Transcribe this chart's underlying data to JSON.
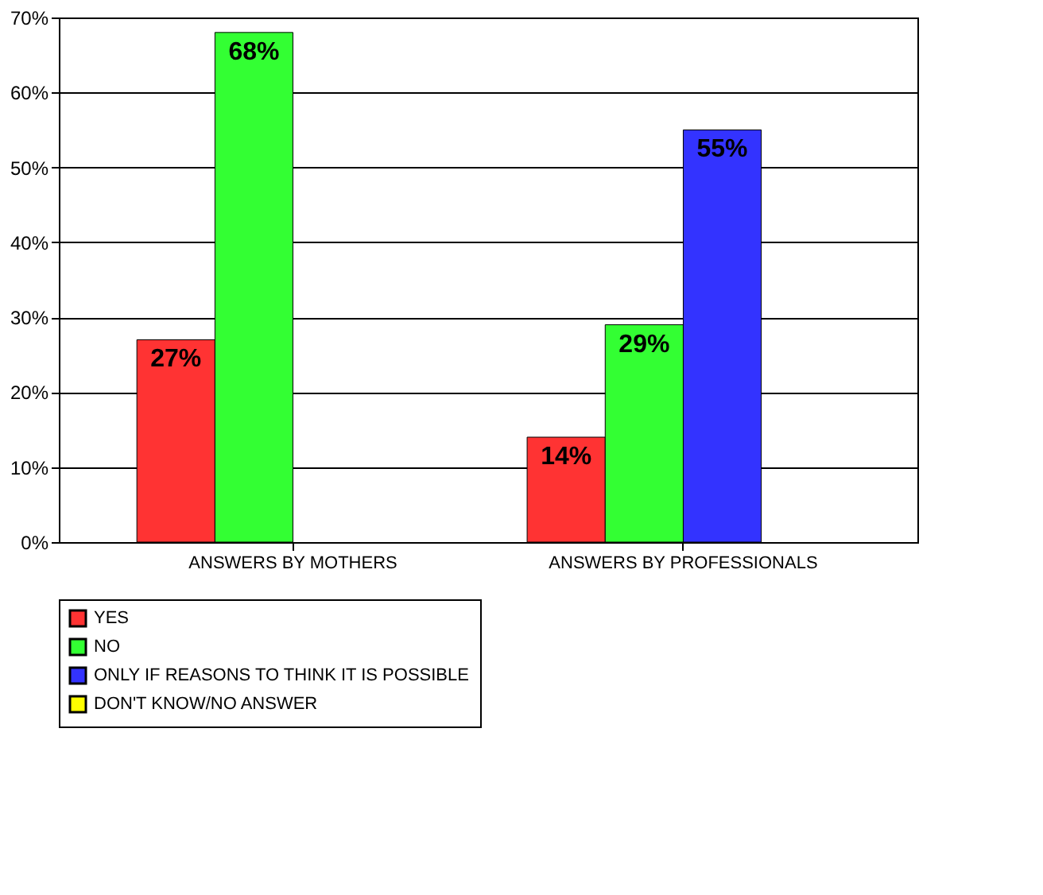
{
  "chart_data": {
    "type": "bar",
    "categories": [
      "ANSWERS BY MOTHERS",
      "ANSWERS BY PROFESSIONALS"
    ],
    "series": [
      {
        "name": "YES",
        "color": "#ff3333",
        "values": [
          27,
          14
        ],
        "value_labels": [
          "27%",
          "14%"
        ]
      },
      {
        "name": "NO",
        "color": "#33ff33",
        "values": [
          68,
          29
        ],
        "value_labels": [
          "68%",
          "29%"
        ]
      },
      {
        "name": "ONLY IF REASONS TO THINK IT IS POSSIBLE",
        "color": "#3333ff",
        "values": [
          null,
          55
        ],
        "value_labels": [
          null,
          "55%"
        ]
      },
      {
        "name": "DON'T KNOW/NO ANSWER",
        "color": "#ffff00",
        "values": [
          null,
          null
        ],
        "value_labels": [
          null,
          null
        ]
      }
    ],
    "ylim": [
      0,
      70
    ],
    "yticks": [
      {
        "value": 0,
        "label": "0%"
      },
      {
        "value": 10,
        "label": "10%"
      },
      {
        "value": 20,
        "label": "20%"
      },
      {
        "value": 30,
        "label": "30%"
      },
      {
        "value": 40,
        "label": "40%"
      },
      {
        "value": 50,
        "label": "50%"
      },
      {
        "value": 60,
        "label": "60%"
      },
      {
        "value": 70,
        "label": "70%"
      }
    ],
    "grid": "y",
    "legend": "bottom"
  }
}
